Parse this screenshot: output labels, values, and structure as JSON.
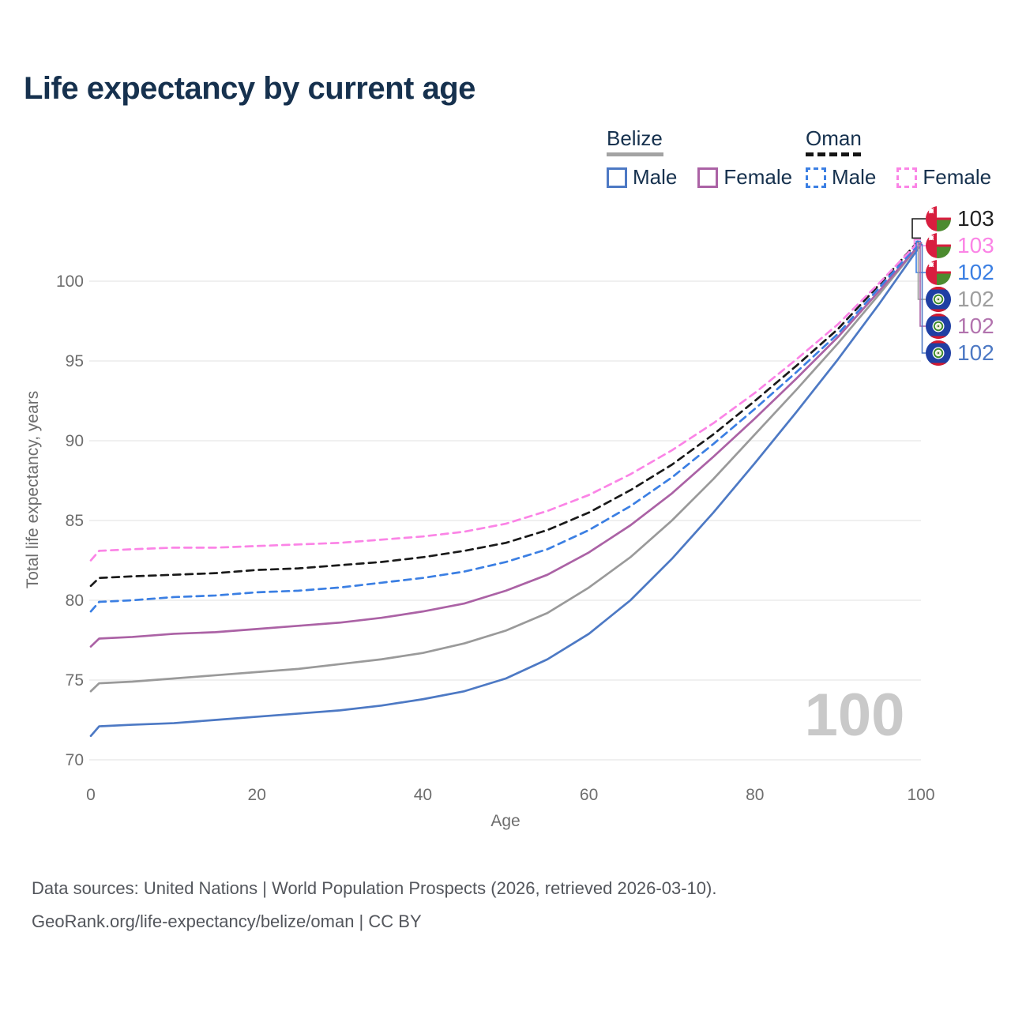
{
  "page": {
    "title": "Life expectancy by current age",
    "watermark_age": "100"
  },
  "legend": {
    "groups": [
      {
        "label": "Belize",
        "line_style": "solid",
        "underline_color": "#a3a3a3",
        "items": [
          {
            "label": "Male",
            "color": "#4d79c4"
          },
          {
            "label": "Female",
            "color": "#ab62a5"
          }
        ]
      },
      {
        "label": "Oman",
        "line_style": "dashed",
        "underline_color": "#141414",
        "items": [
          {
            "label": "Male",
            "color": "#3b7fe3"
          },
          {
            "label": "Female",
            "color": "#fb84e6"
          }
        ]
      }
    ]
  },
  "chart_data": {
    "type": "line",
    "title": "Life expectancy by current age",
    "xlabel": "Age",
    "ylabel": "Total life expectancy, years",
    "xlim": [
      0,
      100
    ],
    "ylim": [
      70,
      100
    ],
    "x_ticks": [
      0,
      20,
      40,
      60,
      80,
      100
    ],
    "y_ticks": [
      70,
      75,
      80,
      85,
      90,
      95,
      100
    ],
    "grid": "horizontal-only",
    "legend_position": "top-right",
    "ages": [
      0,
      1,
      5,
      10,
      15,
      20,
      25,
      30,
      35,
      40,
      45,
      50,
      55,
      60,
      65,
      70,
      75,
      80,
      85,
      90,
      95,
      100
    ],
    "series": [
      {
        "id": "belize_male",
        "name": "Belize Male",
        "country": "Belize",
        "sex": "Male",
        "color": "#4d79c4",
        "dash": false,
        "values": [
          71.5,
          72.1,
          72.2,
          72.3,
          72.5,
          72.7,
          72.9,
          73.1,
          73.4,
          73.8,
          74.3,
          75.1,
          76.3,
          77.9,
          80.0,
          82.6,
          85.5,
          88.6,
          91.8,
          95.1,
          98.6,
          102.3
        ]
      },
      {
        "id": "belize_both",
        "name": "Belize Both sexes",
        "country": "Belize",
        "sex": "Both",
        "color": "#9a9a9a",
        "dash": false,
        "values": [
          74.3,
          74.8,
          74.9,
          75.1,
          75.3,
          75.5,
          75.7,
          76.0,
          76.3,
          76.7,
          77.3,
          78.1,
          79.2,
          80.8,
          82.7,
          85.0,
          87.6,
          90.4,
          93.2,
          96.1,
          99.2,
          102.4
        ]
      },
      {
        "id": "belize_female",
        "name": "Belize Female",
        "country": "Belize",
        "sex": "Female",
        "color": "#ab62a5",
        "dash": false,
        "values": [
          77.1,
          77.6,
          77.7,
          77.9,
          78.0,
          78.2,
          78.4,
          78.6,
          78.9,
          79.3,
          79.8,
          80.6,
          81.6,
          83.0,
          84.7,
          86.7,
          89.0,
          91.4,
          93.9,
          96.5,
          99.4,
          102.4
        ]
      },
      {
        "id": "oman_male",
        "name": "Oman Male",
        "country": "Oman",
        "sex": "Male",
        "color": "#3b7fe3",
        "dash": true,
        "values": [
          79.3,
          79.9,
          80.0,
          80.2,
          80.3,
          80.5,
          80.6,
          80.8,
          81.1,
          81.4,
          81.8,
          82.4,
          83.2,
          84.4,
          85.9,
          87.7,
          89.8,
          92.0,
          94.3,
          96.7,
          99.6,
          102.5
        ]
      },
      {
        "id": "oman_both",
        "name": "Oman Both sexes",
        "country": "Oman",
        "sex": "Both",
        "color": "#1a1a1a",
        "dash": true,
        "values": [
          80.9,
          81.4,
          81.5,
          81.6,
          81.7,
          81.9,
          82.0,
          82.2,
          82.4,
          82.7,
          83.1,
          83.6,
          84.4,
          85.5,
          86.9,
          88.5,
          90.4,
          92.5,
          94.7,
          97.0,
          99.8,
          102.7
        ]
      },
      {
        "id": "oman_female",
        "name": "Oman Female",
        "country": "Oman",
        "sex": "Female",
        "color": "#fb84e6",
        "dash": true,
        "values": [
          82.5,
          83.1,
          83.2,
          83.3,
          83.3,
          83.4,
          83.5,
          83.6,
          83.8,
          84.0,
          84.3,
          84.8,
          85.6,
          86.6,
          87.9,
          89.4,
          91.1,
          93.0,
          95.1,
          97.3,
          99.9,
          102.6
        ]
      }
    ],
    "end_labels": [
      {
        "series": "oman_both",
        "value": "103",
        "text_color": "#222222",
        "flag": "oman"
      },
      {
        "series": "oman_female",
        "value": "103",
        "text_color": "#fb84e6",
        "flag": "oman"
      },
      {
        "series": "oman_male",
        "value": "102",
        "text_color": "#3b7fe3",
        "flag": "oman"
      },
      {
        "series": "belize_both",
        "value": "102",
        "text_color": "#9e9e9e",
        "flag": "belize"
      },
      {
        "series": "belize_female",
        "value": "102",
        "text_color": "#b273ae",
        "flag": "belize"
      },
      {
        "series": "belize_male",
        "value": "102",
        "text_color": "#4d79c4",
        "flag": "belize"
      }
    ]
  },
  "footer": {
    "line1": "Data sources: United Nations | World Population Prospects (2026, retrieved 2026-03-10).",
    "line2": "GeoRank.org/life-expectancy/belize/oman | CC BY"
  },
  "colors": {
    "title_text": "#16314e",
    "grid": "#e8e8e8",
    "tick_text": "#6e6e6e",
    "watermark": "#c9c9c9",
    "oman_flag_red": "#d81e3f",
    "oman_flag_green": "#4c8b2f",
    "belize_flag_blue": "#1f3fa3",
    "belize_flag_red": "#d6192e",
    "belize_flag_green": "#3f8c2a"
  }
}
